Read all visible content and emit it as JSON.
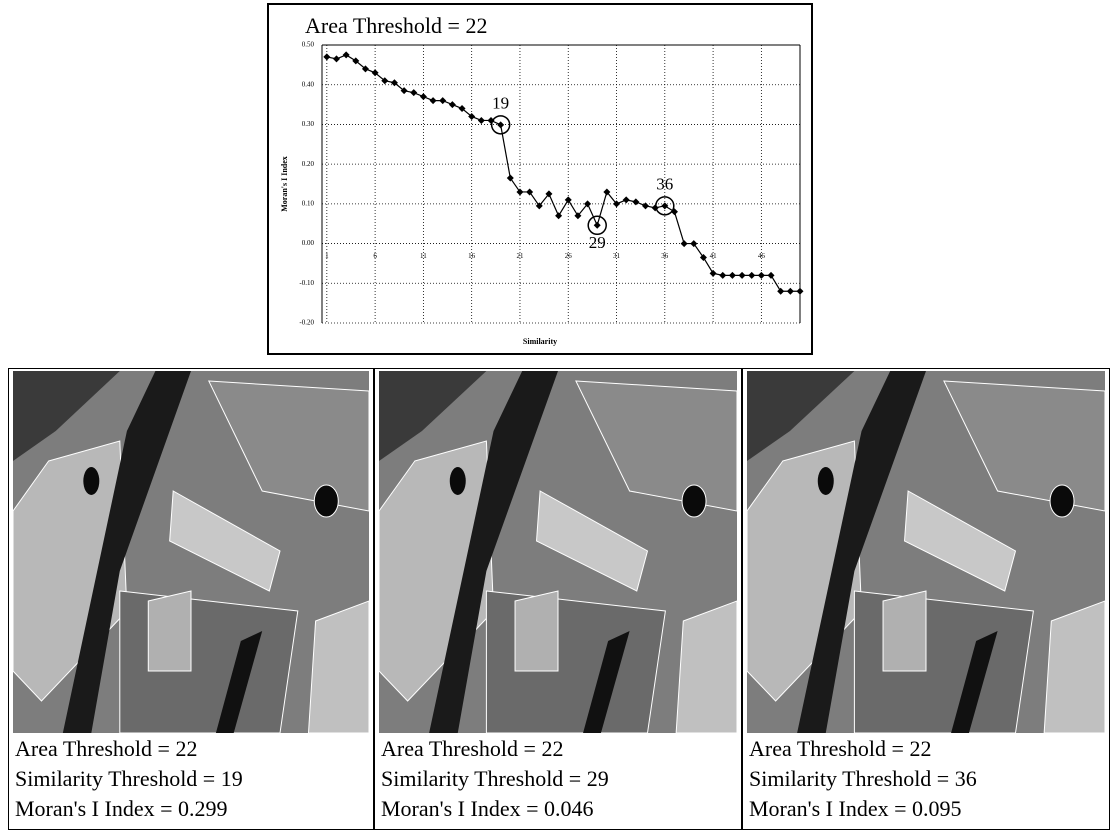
{
  "chart_data": {
    "type": "line",
    "title": "Area Threshold = 22",
    "x_label": "Similarity",
    "y_label": "Moran's I Index",
    "x": [
      1,
      2,
      3,
      4,
      5,
      6,
      7,
      8,
      9,
      10,
      11,
      12,
      13,
      14,
      15,
      16,
      17,
      18,
      19,
      20,
      21,
      22,
      23,
      24,
      25,
      26,
      27,
      28,
      29,
      30,
      31,
      32,
      33,
      34,
      35,
      36,
      37,
      38,
      39,
      40,
      41,
      42,
      43,
      44,
      45,
      46,
      47,
      48,
      49,
      50
    ],
    "series": [
      {
        "name": "Moran's I Index",
        "color": "#000000",
        "values": [
          0.47,
          0.465,
          0.475,
          0.46,
          0.44,
          0.43,
          0.41,
          0.405,
          0.385,
          0.38,
          0.37,
          0.36,
          0.36,
          0.35,
          0.34,
          0.32,
          0.31,
          0.31,
          0.299,
          0.165,
          0.13,
          0.13,
          0.095,
          0.125,
          0.07,
          0.11,
          0.07,
          0.1,
          0.046,
          0.13,
          0.1,
          0.11,
          0.105,
          0.095,
          0.09,
          0.095,
          0.08,
          0.0,
          0.0,
          -0.035,
          -0.075,
          -0.08,
          -0.08,
          -0.08,
          -0.08,
          -0.08,
          -0.08,
          -0.12,
          -0.12,
          -0.12
        ]
      }
    ],
    "annotated_x": [
      19,
      29,
      36
    ],
    "xlim": [
      0.5,
      50
    ],
    "ylim": [
      -0.2,
      0.5
    ],
    "xticks": [
      1,
      6,
      11,
      16,
      21,
      26,
      31,
      36,
      41,
      46
    ],
    "yticks": [
      {
        "value": 0.5,
        "label": "0.50"
      },
      {
        "value": 0.4,
        "label": "0.40"
      },
      {
        "value": 0.3,
        "label": "0.30"
      },
      {
        "value": 0.2,
        "label": "0.20"
      },
      {
        "value": 0.1,
        "label": "0.10"
      },
      {
        "value": 0.0,
        "label": "0.00"
      },
      {
        "value": -0.1,
        "label": "-0.10"
      },
      {
        "value": -0.2,
        "label": "-0.20"
      }
    ],
    "grid": true
  },
  "panels": [
    {
      "lines": [
        "Area Threshold = 22",
        "Similarity Threshold = 19",
        "Moran's I Index = 0.299"
      ]
    },
    {
      "lines": [
        "Area Threshold = 22",
        "Similarity Threshold = 29",
        "Moran's I Index = 0.046"
      ]
    },
    {
      "lines": [
        "Area Threshold = 22",
        "Similarity Threshold = 36",
        "Moran's I Index = 0.095"
      ]
    }
  ]
}
